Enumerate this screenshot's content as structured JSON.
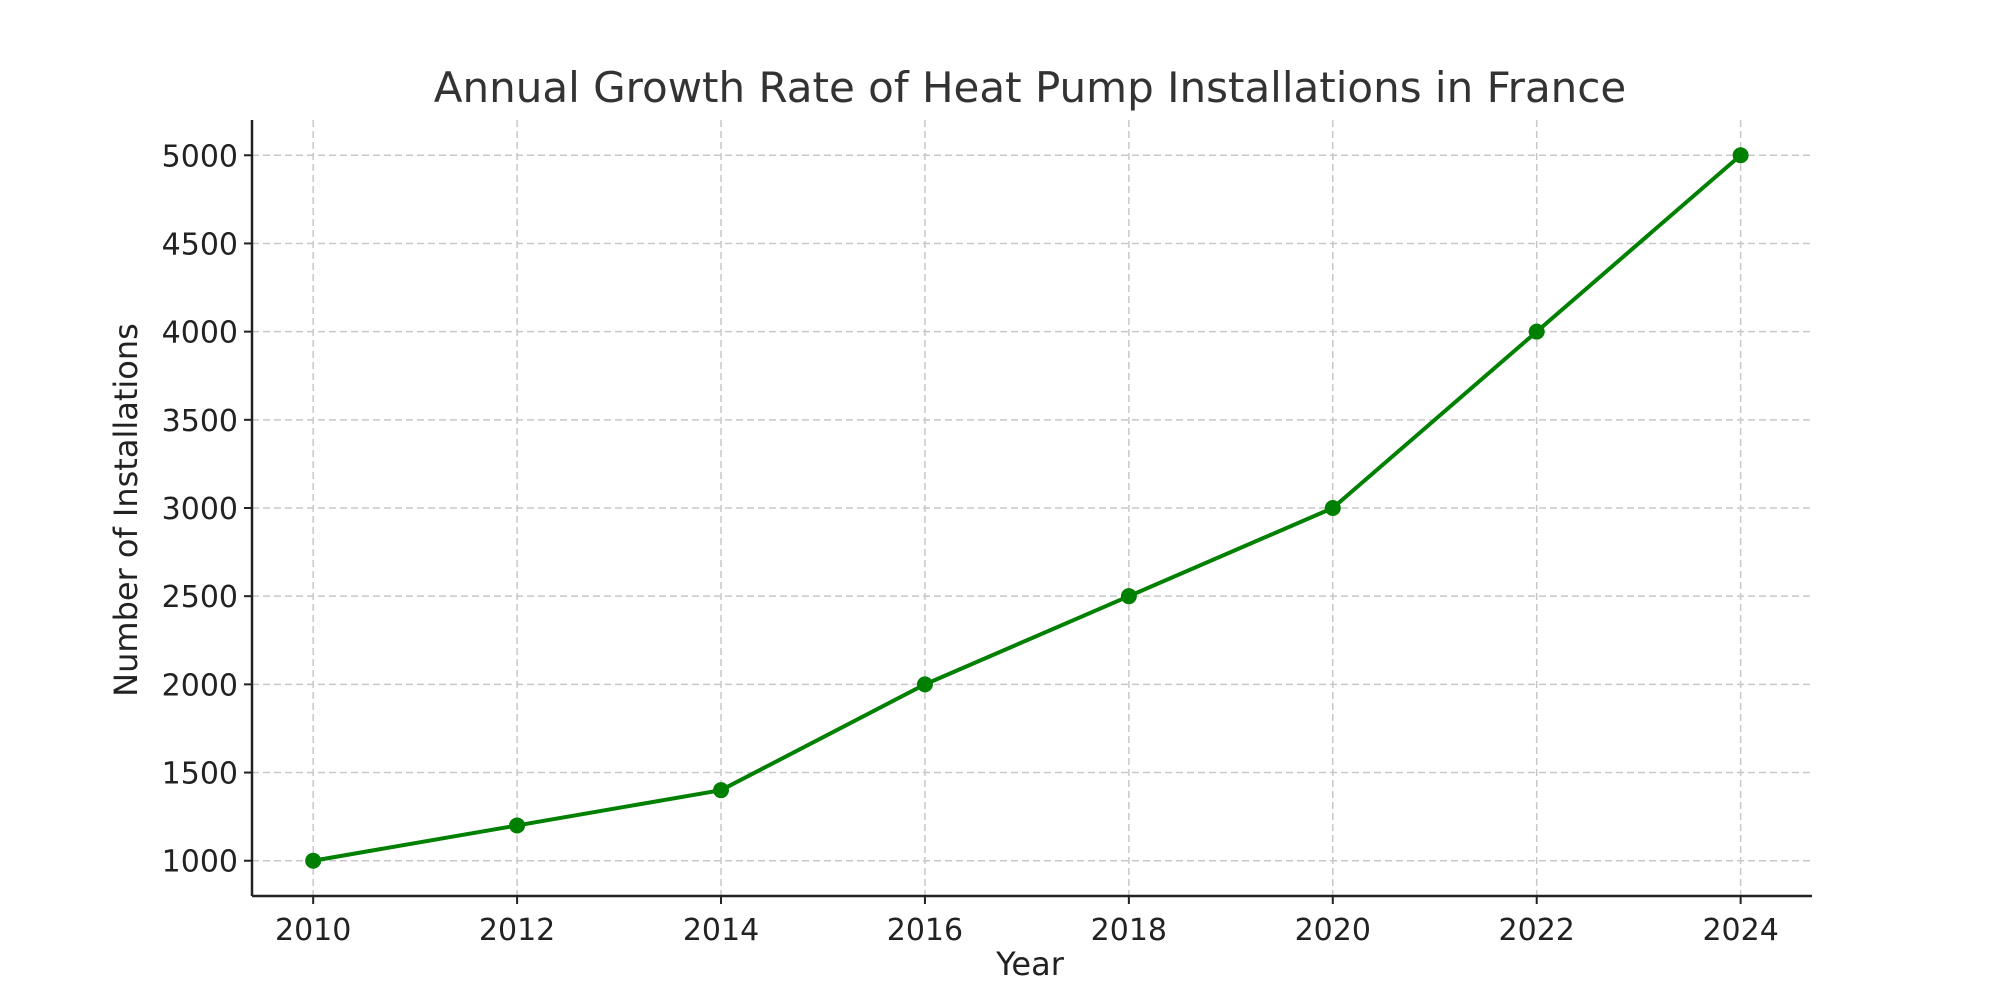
{
  "chart_data": {
    "type": "line",
    "title": "Annual Growth Rate of Heat Pump Installations in France",
    "xlabel": "Year",
    "ylabel": "Number of Installations",
    "x": [
      2010,
      2012,
      2014,
      2016,
      2018,
      2020,
      2022,
      2024
    ],
    "series": [
      {
        "name": "Installations",
        "values": [
          1000,
          1200,
          1400,
          2000,
          2500,
          3000,
          4000,
          5000
        ],
        "color": "#008000",
        "marker": "circle"
      }
    ],
    "xticks": [
      "2010",
      "2012",
      "2014",
      "2016",
      "2018",
      "2020",
      "2022",
      "2024"
    ],
    "yticks": [
      "1000",
      "1500",
      "2000",
      "2500",
      "3000",
      "3500",
      "4000",
      "4500",
      "5000"
    ],
    "xlim": [
      2009.4,
      2024.7
    ],
    "ylim": [
      800,
      5200
    ],
    "grid": true,
    "legend": "none"
  }
}
